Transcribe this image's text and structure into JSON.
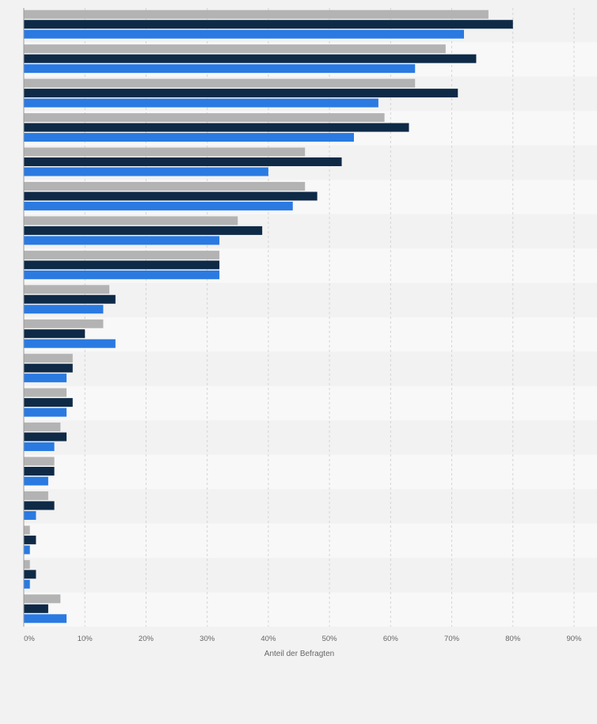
{
  "chart_data": {
    "type": "bar",
    "orientation": "horizontal",
    "categories": [
      "",
      "",
      "",
      "",
      "",
      "",
      "",
      "",
      "",
      "",
      "",
      "",
      "",
      "",
      "",
      "",
      "",
      ""
    ],
    "series": [
      {
        "color": "#b3b3b3",
        "values": [
          76,
          69,
          64,
          59,
          46,
          46,
          35,
          32,
          14,
          13,
          8,
          7,
          6,
          5,
          4,
          1,
          1,
          6
        ]
      },
      {
        "color": "#0e2a47",
        "values": [
          80,
          74,
          71,
          63,
          52,
          48,
          39,
          32,
          15,
          10,
          8,
          8,
          7,
          5,
          5,
          2,
          2,
          4
        ]
      },
      {
        "color": "#2a7ae2",
        "values": [
          72,
          64,
          58,
          54,
          40,
          44,
          32,
          32,
          13,
          15,
          7,
          7,
          5,
          4,
          2,
          1,
          1,
          7
        ]
      }
    ],
    "x_ticks": [
      "0%",
      "10%",
      "20%",
      "30%",
      "40%",
      "50%",
      "60%",
      "70%",
      "80%",
      "90%"
    ],
    "xlabel": "Anteil der Befragten",
    "xlim": [
      0,
      90
    ],
    "grid": true,
    "legend": "none"
  }
}
